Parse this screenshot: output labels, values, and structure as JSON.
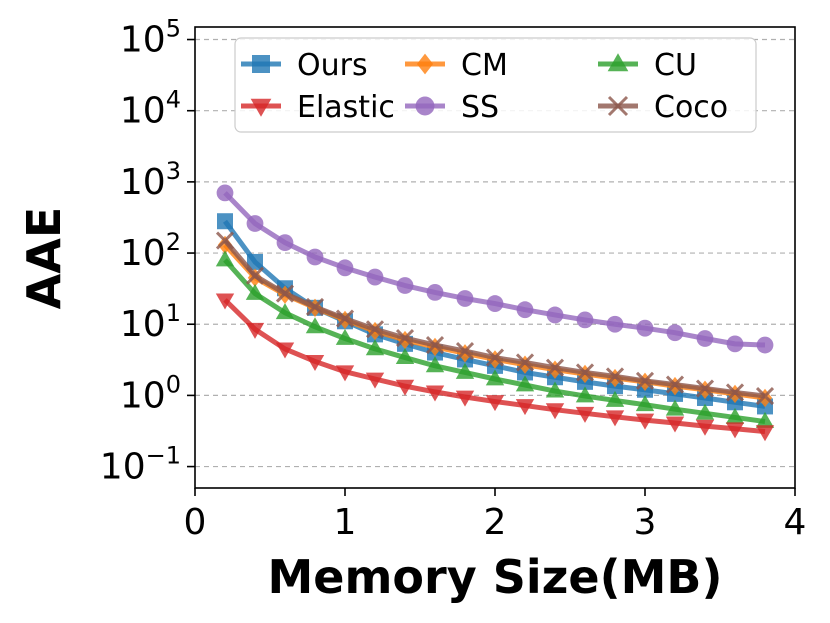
{
  "chart_data": {
    "type": "line",
    "xlabel": "Memory Size(MB)",
    "ylabel": "AAE",
    "xlim": [
      0,
      4
    ],
    "ylim": [
      0.05,
      150000
    ],
    "yscale": "log",
    "xticks": [
      "0",
      "1",
      "2",
      "3",
      "4"
    ],
    "yticks": [
      {
        "base": "10",
        "exp": "−1",
        "value": 0.1
      },
      {
        "base": "10",
        "exp": "0",
        "value": 1
      },
      {
        "base": "10",
        "exp": "1",
        "value": 10
      },
      {
        "base": "10",
        "exp": "2",
        "value": 100
      },
      {
        "base": "10",
        "exp": "3",
        "value": 1000
      },
      {
        "base": "10",
        "exp": "4",
        "value": 10000
      },
      {
        "base": "10",
        "exp": "5",
        "value": 100000
      }
    ],
    "grid": "y",
    "legend": {
      "placement": "top",
      "columns": 3
    },
    "x": [
      0.2,
      0.4,
      0.6,
      0.8,
      1.0,
      1.2,
      1.4,
      1.6,
      1.8,
      2.0,
      2.2,
      2.4,
      2.6,
      2.8,
      3.0,
      3.2,
      3.4,
      3.6,
      3.8
    ],
    "series": [
      {
        "name": "Ours",
        "color": "#1f77b4",
        "marker": "square",
        "values": [
          280,
          75,
          32,
          17,
          11,
          7.2,
          5.3,
          4.0,
          3.2,
          2.6,
          2.1,
          1.8,
          1.55,
          1.35,
          1.2,
          1.05,
          0.92,
          0.8,
          0.7
        ]
      },
      {
        "name": "CM",
        "color": "#ff7f0e",
        "marker": "diamond",
        "values": [
          130,
          45,
          26,
          17,
          11.5,
          8.0,
          6.0,
          4.8,
          3.9,
          3.2,
          2.7,
          2.3,
          2.0,
          1.75,
          1.55,
          1.35,
          1.2,
          1.05,
          0.92
        ]
      },
      {
        "name": "CU",
        "color": "#2ca02c",
        "marker": "triangle-up",
        "values": [
          80,
          27,
          14.5,
          9.2,
          6.3,
          4.5,
          3.4,
          2.6,
          2.1,
          1.7,
          1.4,
          1.15,
          0.98,
          0.85,
          0.74,
          0.64,
          0.56,
          0.49,
          0.43
        ]
      },
      {
        "name": "Elastic",
        "color": "#d62728",
        "marker": "triangle-down",
        "values": [
          22,
          8.5,
          4.5,
          3.0,
          2.15,
          1.7,
          1.35,
          1.12,
          0.95,
          0.82,
          0.72,
          0.63,
          0.56,
          0.5,
          0.45,
          0.41,
          0.37,
          0.34,
          0.31
        ]
      },
      {
        "name": "SS",
        "color": "#9467bd",
        "marker": "circle",
        "values": [
          700,
          260,
          140,
          88,
          62,
          46,
          35,
          28,
          23,
          19.5,
          16,
          13.5,
          11.5,
          10,
          8.8,
          7.6,
          6.3,
          5.3,
          5.1
        ]
      },
      {
        "name": "Coco",
        "color": "#8c564b",
        "marker": "x",
        "values": [
          150,
          48,
          27,
          17.5,
          12,
          8.5,
          6.4,
          5.1,
          4.2,
          3.4,
          2.9,
          2.45,
          2.1,
          1.85,
          1.6,
          1.42,
          1.25,
          1.1,
          0.98
        ]
      }
    ]
  }
}
